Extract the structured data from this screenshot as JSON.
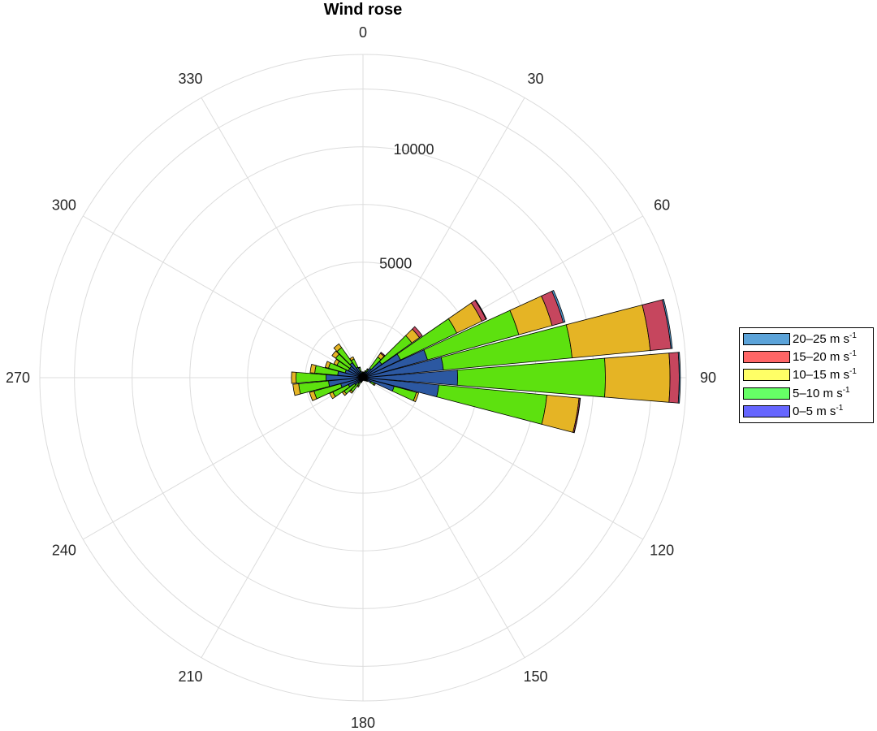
{
  "chart_data": {
    "type": "windrose",
    "title": "Wind rose",
    "angle_ticks": [
      0,
      30,
      60,
      90,
      120,
      150,
      180,
      210,
      240,
      270,
      300,
      330
    ],
    "radial_ticks": [
      5000,
      10000
    ],
    "rmax": 14000,
    "direction_convention": "clockwise from north (0 at top)",
    "legend_placement": "right",
    "bins": [
      {
        "label": "20–25 m s",
        "exp": "-1",
        "legend_color": "#5BA3D9",
        "fill_color": "#4E96CC"
      },
      {
        "label": "15–20 m s",
        "exp": "-1",
        "legend_color": "#FF6666",
        "fill_color": "#C6465E"
      },
      {
        "label": "10–15 m s",
        "exp": "-1",
        "legend_color": "#FFFF66",
        "fill_color": "#E5B425"
      },
      {
        "label": "5–10 m s",
        "exp": "-1",
        "legend_color": "#66FF66",
        "fill_color": "#5DE10F"
      },
      {
        "label": "0–5 m s",
        "exp": "-1",
        "legend_color": "#6666FF",
        "fill_color": "#2C58A1"
      }
    ],
    "sectors": [
      {
        "dir": 0,
        "c": [
          200,
          40,
          0,
          0,
          0
        ]
      },
      {
        "dir": 10,
        "c": [
          200,
          50,
          0,
          0,
          0
        ]
      },
      {
        "dir": 20,
        "c": [
          250,
          60,
          10,
          0,
          0
        ]
      },
      {
        "dir": 30,
        "c": [
          300,
          100,
          30,
          0,
          0
        ]
      },
      {
        "dir": 40,
        "c": [
          500,
          600,
          200,
          50,
          0
        ]
      },
      {
        "dir": 50,
        "c": [
          1000,
          1600,
          400,
          150,
          0
        ]
      },
      {
        "dir": 60,
        "c": [
          1800,
          2700,
          1200,
          200,
          30
        ]
      },
      {
        "dir": 70,
        "c": [
          2900,
          4100,
          1500,
          500,
          80
        ]
      },
      {
        "dir": 80,
        "c": [
          3500,
          5600,
          3400,
          900,
          60
        ]
      },
      {
        "dir": 90,
        "c": [
          4100,
          6400,
          2800,
          400,
          50
        ]
      },
      {
        "dir": 100,
        "c": [
          3300,
          4700,
          1400,
          50,
          10
        ]
      },
      {
        "dir": 110,
        "c": [
          1400,
          1000,
          100,
          0,
          0
        ]
      },
      {
        "dir": 120,
        "c": [
          400,
          150,
          50,
          0,
          0
        ]
      },
      {
        "dir": 130,
        "c": [
          200,
          50,
          0,
          0,
          0
        ]
      },
      {
        "dir": 140,
        "c": [
          150,
          30,
          0,
          0,
          0
        ]
      },
      {
        "dir": 150,
        "c": [
          120,
          30,
          0,
          0,
          0
        ]
      },
      {
        "dir": 160,
        "c": [
          100,
          20,
          0,
          0,
          0
        ]
      },
      {
        "dir": 170,
        "c": [
          100,
          20,
          0,
          0,
          0
        ]
      },
      {
        "dir": 180,
        "c": [
          100,
          20,
          0,
          0,
          0
        ]
      },
      {
        "dir": 190,
        "c": [
          120,
          30,
          0,
          0,
          0
        ]
      },
      {
        "dir": 200,
        "c": [
          150,
          60,
          10,
          0,
          0
        ]
      },
      {
        "dir": 210,
        "c": [
          200,
          200,
          50,
          0,
          0
        ]
      },
      {
        "dir": 220,
        "c": [
          300,
          450,
          80,
          0,
          0
        ]
      },
      {
        "dir": 230,
        "c": [
          450,
          550,
          100,
          0,
          0
        ]
      },
      {
        "dir": 240,
        "c": [
          700,
          750,
          150,
          0,
          0
        ]
      },
      {
        "dir": 250,
        "c": [
          1000,
          1200,
          200,
          0,
          0
        ]
      },
      {
        "dir": 260,
        "c": [
          1500,
          1300,
          250,
          0,
          0
        ]
      },
      {
        "dir": 270,
        "c": [
          1600,
          1300,
          200,
          0,
          0
        ]
      },
      {
        "dir": 280,
        "c": [
          1100,
          1000,
          200,
          0,
          0
        ]
      },
      {
        "dir": 290,
        "c": [
          800,
          750,
          150,
          0,
          0
        ]
      },
      {
        "dir": 300,
        "c": [
          700,
          550,
          150,
          0,
          0
        ]
      },
      {
        "dir": 310,
        "c": [
          700,
          750,
          200,
          0,
          0
        ]
      },
      {
        "dir": 320,
        "c": [
          800,
          800,
          200,
          0,
          0
        ]
      },
      {
        "dir": 330,
        "c": [
          500,
          400,
          100,
          0,
          0
        ]
      },
      {
        "dir": 340,
        "c": [
          300,
          150,
          30,
          0,
          0
        ]
      },
      {
        "dir": 350,
        "c": [
          200,
          60,
          0,
          0,
          0
        ]
      }
    ]
  }
}
